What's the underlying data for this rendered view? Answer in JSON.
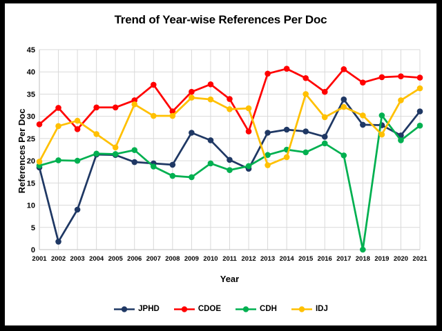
{
  "frame": {
    "border_color": "#000000",
    "background": "#FFFFFF"
  },
  "chart_data": {
    "type": "line",
    "title": "Trend of Year-wise References Per Doc",
    "xlabel": "Year",
    "ylabel": "References Per Doc",
    "ylim": [
      0,
      45
    ],
    "ytick_step": 5,
    "ytick_labels": [
      "0",
      "5",
      "10",
      "15",
      "20",
      "25",
      "30",
      "35",
      "40",
      "45"
    ],
    "grid": "both",
    "gridline_color": "#D9D9D9",
    "axis_line_color": "#BFBFBF",
    "legend_position": "bottom-center",
    "categories": [
      "2001",
      "2002",
      "2003",
      "2004",
      "2005",
      "2006",
      "2007",
      "2008",
      "2009",
      "2010",
      "2011",
      "2012",
      "2013",
      "2014",
      "2015",
      "2016",
      "2017",
      "2018",
      "2019",
      "2020",
      "2021"
    ],
    "series": [
      {
        "name": "JPHD",
        "color": "#1F3864",
        "values": [
          18.5,
          1.8,
          9.0,
          21.4,
          21.3,
          19.7,
          19.4,
          19.1,
          26.3,
          24.6,
          20.2,
          18.2,
          26.3,
          27.0,
          26.6,
          25.4,
          33.8,
          28.1,
          28.0,
          25.7,
          31.1
        ]
      },
      {
        "name": "CDOE",
        "color": "#FF0000",
        "values": [
          28.2,
          31.9,
          27.1,
          32.0,
          32.0,
          33.6,
          37.1,
          31.1,
          35.5,
          37.2,
          33.9,
          26.6,
          39.6,
          40.7,
          38.6,
          35.5,
          40.6,
          37.6,
          38.8,
          39.0,
          38.7
        ]
      },
      {
        "name": "CDH",
        "color": "#00B050",
        "values": [
          18.9,
          20.1,
          20.0,
          21.6,
          21.5,
          22.4,
          18.7,
          16.6,
          16.3,
          19.4,
          17.9,
          18.8,
          21.3,
          22.5,
          21.9,
          23.9,
          21.2,
          0.0,
          30.2,
          24.6,
          27.9
        ]
      },
      {
        "name": "IDJ",
        "color": "#FFC000",
        "values": [
          19.8,
          27.8,
          29.0,
          26.0,
          23.0,
          32.7,
          30.1,
          30.1,
          34.2,
          33.8,
          31.6,
          31.8,
          19.0,
          20.8,
          35.0,
          29.8,
          32.1,
          30.2,
          25.9,
          33.6,
          36.3
        ]
      }
    ]
  }
}
